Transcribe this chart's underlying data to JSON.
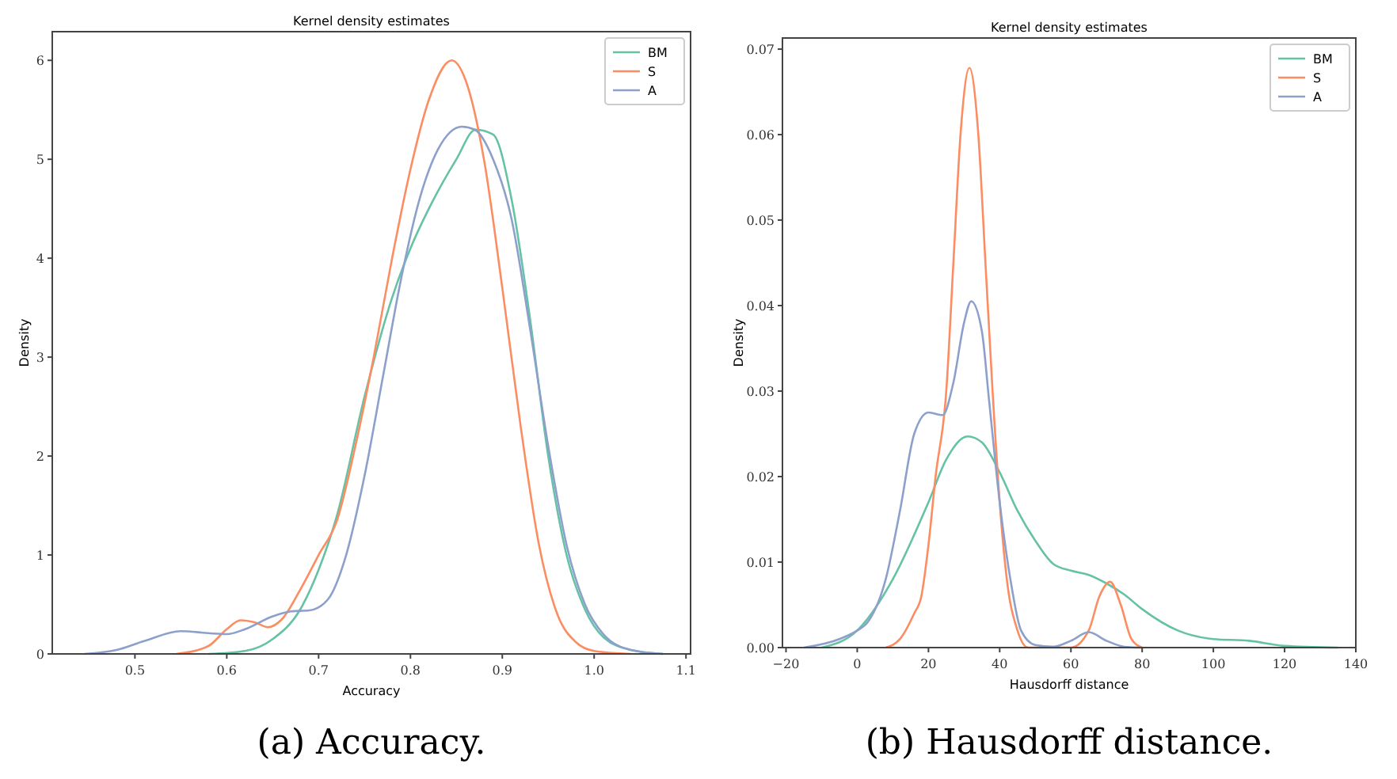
{
  "chart_data": [
    {
      "type": "line",
      "title": "Kernel density estimates",
      "xlabel": "Accuracy",
      "ylabel": "Density",
      "xlim": [
        0.41,
        1.105
      ],
      "ylim": [
        0,
        6.29
      ],
      "xticks": [
        {
          "value": 0.5,
          "label": "0.5"
        },
        {
          "value": 0.6,
          "label": "0.6"
        },
        {
          "value": 0.7,
          "label": "0.7"
        },
        {
          "value": 0.8,
          "label": "0.8"
        },
        {
          "value": 0.9,
          "label": "0.9"
        },
        {
          "value": 1.0,
          "label": "1.0"
        },
        {
          "value": 1.1,
          "label": "1.1"
        }
      ],
      "yticks": [
        0,
        1,
        2,
        3,
        4,
        5,
        6
      ],
      "grid": false,
      "legend": "top right",
      "annotations": [
        "(a) Accuracy."
      ],
      "series": [
        {
          "name": "BM",
          "color": "#66c2a5",
          "x": [
            0.58,
            0.62,
            0.65,
            0.68,
            0.7,
            0.72,
            0.75,
            0.78,
            0.8,
            0.82,
            0.85,
            0.871,
            0.89,
            0.91,
            0.93,
            0.95,
            0.97,
            0.99,
            1.01,
            1.04,
            1.075
          ],
          "values": [
            0,
            0.03,
            0.15,
            0.45,
            0.85,
            1.4,
            2.6,
            3.6,
            4.1,
            4.5,
            5.0,
            5.3,
            5.25,
            4.6,
            3.4,
            2.0,
            1.0,
            0.45,
            0.17,
            0.04,
            0
          ]
        },
        {
          "name": "S",
          "color": "#fc8d62",
          "x": [
            0.545,
            0.58,
            0.6,
            0.615,
            0.63,
            0.645,
            0.66,
            0.68,
            0.7,
            0.72,
            0.74,
            0.76,
            0.78,
            0.8,
            0.82,
            0.845,
            0.86,
            0.88,
            0.9,
            0.92,
            0.94,
            0.96,
            0.98,
            1.0,
            1.04
          ],
          "values": [
            0,
            0.08,
            0.25,
            0.34,
            0.32,
            0.27,
            0.35,
            0.65,
            1.0,
            1.35,
            2.1,
            3.0,
            4.0,
            4.9,
            5.6,
            6.0,
            5.8,
            5.0,
            3.7,
            2.3,
            1.1,
            0.4,
            0.12,
            0.03,
            0
          ]
        },
        {
          "name": "A",
          "color": "#8da0cb",
          "x": [
            0.445,
            0.48,
            0.51,
            0.55,
            0.58,
            0.6,
            0.62,
            0.65,
            0.67,
            0.69,
            0.71,
            0.73,
            0.75,
            0.77,
            0.79,
            0.81,
            0.83,
            0.856,
            0.87,
            0.89,
            0.91,
            0.93,
            0.95,
            0.97,
            0.99,
            1.01,
            1.04,
            1.075
          ],
          "values": [
            0,
            0.04,
            0.13,
            0.23,
            0.21,
            0.2,
            0.25,
            0.38,
            0.43,
            0.44,
            0.55,
            1.0,
            1.8,
            2.8,
            3.8,
            4.6,
            5.1,
            5.33,
            5.3,
            5.0,
            4.4,
            3.3,
            2.1,
            1.1,
            0.5,
            0.2,
            0.04,
            0
          ]
        }
      ]
    },
    {
      "type": "line",
      "title": "Kernel density estimates",
      "xlabel": "Hausdorff distance",
      "ylabel": "Density",
      "xlim": [
        -21,
        140
      ],
      "ylim": [
        0,
        0.0713
      ],
      "xticks": [
        {
          "value": -20,
          "label": "−20"
        },
        0,
        20,
        40,
        60,
        80,
        100,
        120,
        140
      ],
      "yticks": [
        {
          "value": 0,
          "label": "0.00"
        },
        {
          "value": 0.01,
          "label": "0.01"
        },
        {
          "value": 0.02,
          "label": "0.02"
        },
        {
          "value": 0.03,
          "label": "0.03"
        },
        {
          "value": 0.04,
          "label": "0.04"
        },
        {
          "value": 0.05,
          "label": "0.05"
        },
        {
          "value": 0.06,
          "label": "0.06"
        },
        {
          "value": 0.07,
          "label": "0.07"
        }
      ],
      "grid": false,
      "legend": "top right",
      "annotations": [
        "(b) Hausdorff distance."
      ],
      "series": [
        {
          "name": "BM",
          "color": "#66c2a5",
          "x": [
            -10,
            0,
            10,
            20,
            25,
            31,
            35,
            40,
            45,
            50,
            55,
            60,
            65,
            70,
            75,
            80,
            90,
            100,
            110,
            120,
            135
          ],
          "values": [
            0,
            0.002,
            0.008,
            0.017,
            0.022,
            0.0247,
            0.024,
            0.0205,
            0.016,
            0.0125,
            0.0098,
            0.009,
            0.0085,
            0.0075,
            0.0062,
            0.0045,
            0.002,
            0.001,
            0.0008,
            0.0002,
            0
          ]
        },
        {
          "name": "S",
          "color": "#fc8d62",
          "x": [
            8,
            12,
            16,
            18,
            20,
            22,
            25,
            27,
            29,
            31.5,
            34,
            36,
            38,
            40,
            42,
            45,
            48,
            60,
            65,
            68,
            71,
            74,
            77,
            80
          ],
          "values": [
            0,
            0.001,
            0.004,
            0.006,
            0.012,
            0.02,
            0.03,
            0.045,
            0.06,
            0.0678,
            0.06,
            0.045,
            0.03,
            0.017,
            0.008,
            0.002,
            0,
            0,
            0.002,
            0.006,
            0.0077,
            0.005,
            0.001,
            0
          ]
        },
        {
          "name": "A",
          "color": "#8da0cb",
          "x": [
            -15,
            -5,
            0,
            3,
            8,
            12,
            16,
            20,
            24,
            27,
            30,
            32,
            35,
            37,
            40,
            43,
            46,
            50,
            55,
            60,
            65,
            70,
            75,
            80
          ],
          "values": [
            0,
            0.001,
            0.002,
            0.003,
            0.008,
            0.016,
            0.025,
            0.0275,
            0.0272,
            0.031,
            0.038,
            0.0405,
            0.037,
            0.029,
            0.017,
            0.008,
            0.002,
            0.0003,
            0.0001,
            0.0008,
            0.0018,
            0.0008,
            0.0001,
            0
          ]
        }
      ]
    }
  ]
}
